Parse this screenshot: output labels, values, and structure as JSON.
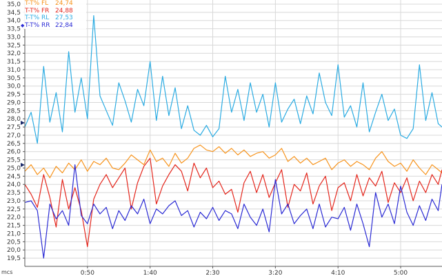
{
  "chart_data": {
    "type": "line",
    "title": "",
    "xlabel": "",
    "ylabel": "",
    "x_unit": "mcs",
    "y_ticks": [
      "19,5",
      "20,0",
      "20,5",
      "21,0",
      "21,5",
      "22,0",
      "22,5",
      "23,0",
      "23,5",
      "24,0",
      "24,5",
      "25,0",
      "25,5",
      "26,0",
      "26,5",
      "27,0",
      "27,5",
      "28,0",
      "28,5",
      "29,0",
      "29,5",
      "30,0",
      "30,5",
      "31,0",
      "31,5",
      "32,0",
      "32,5",
      "33,0",
      "33,5",
      "34,0",
      "34,5",
      "35,0"
    ],
    "ylim": [
      19.0,
      35.25
    ],
    "x_ticks": [
      {
        "label": "0:50",
        "seconds": 50
      },
      {
        "label": "1:40",
        "seconds": 100
      },
      {
        "label": "2:30",
        "seconds": 150
      },
      {
        "label": "3:20",
        "seconds": 200
      },
      {
        "label": "4:10",
        "seconds": 250
      },
      {
        "label": "5:00",
        "seconds": 300
      }
    ],
    "xlim": [
      0,
      333
    ],
    "grid": true,
    "legend_position": "top-left",
    "series": [
      {
        "name": "T-T% FL",
        "value_label": "24,74",
        "color": "#f7941d",
        "x": [
          0,
          5,
          10,
          15,
          20,
          25,
          30,
          35,
          40,
          45,
          50,
          55,
          60,
          65,
          70,
          75,
          80,
          85,
          90,
          95,
          100,
          105,
          110,
          115,
          120,
          125,
          130,
          135,
          140,
          145,
          150,
          155,
          160,
          165,
          170,
          175,
          180,
          185,
          190,
          195,
          200,
          205,
          210,
          215,
          220,
          225,
          230,
          235,
          240,
          245,
          250,
          255,
          260,
          265,
          270,
          275,
          280,
          285,
          290,
          295,
          300,
          305,
          310,
          315,
          320,
          325,
          330,
          333
        ],
        "y": [
          24.8,
          25.2,
          24.6,
          25.0,
          24.4,
          25.1,
          24.7,
          25.3,
          24.9,
          25.5,
          24.8,
          25.4,
          25.2,
          25.6,
          25.0,
          24.9,
          25.3,
          25.8,
          25.5,
          25.2,
          26.1,
          25.4,
          25.6,
          25.1,
          25.9,
          25.3,
          25.6,
          26.2,
          26.4,
          26.1,
          26.0,
          26.3,
          25.9,
          26.2,
          25.8,
          26.1,
          25.7,
          25.9,
          26.0,
          25.6,
          25.8,
          26.2,
          25.4,
          25.7,
          25.3,
          25.6,
          25.2,
          25.4,
          25.6,
          24.9,
          25.3,
          25.5,
          25.1,
          25.4,
          25.2,
          24.9,
          25.6,
          26.0,
          25.4,
          25.1,
          25.3,
          24.8,
          25.5,
          25.0,
          24.6,
          25.2,
          24.9,
          24.7
        ]
      },
      {
        "name": "T-T% FR",
        "value_label": "24,88",
        "color": "#e4251b",
        "x": [
          0,
          5,
          10,
          15,
          20,
          25,
          30,
          35,
          40,
          45,
          50,
          55,
          60,
          65,
          70,
          75,
          80,
          85,
          90,
          95,
          100,
          105,
          110,
          115,
          120,
          125,
          130,
          135,
          140,
          145,
          150,
          155,
          160,
          165,
          170,
          175,
          180,
          185,
          190,
          195,
          200,
          205,
          210,
          215,
          220,
          225,
          230,
          235,
          240,
          245,
          250,
          255,
          260,
          265,
          270,
          275,
          280,
          285,
          290,
          295,
          300,
          305,
          310,
          315,
          320,
          325,
          330,
          333
        ],
        "y": [
          24.0,
          23.4,
          22.6,
          24.6,
          23.2,
          21.4,
          24.3,
          22.5,
          23.8,
          22.4,
          20.2,
          23.1,
          24.0,
          24.6,
          23.8,
          24.4,
          25.0,
          22.5,
          24.1,
          25.1,
          25.6,
          22.8,
          23.9,
          24.6,
          25.2,
          24.8,
          23.6,
          25.3,
          24.4,
          25.0,
          23.8,
          24.2,
          23.4,
          23.7,
          22.3,
          24.1,
          24.8,
          23.5,
          24.6,
          23.2,
          24.1,
          24.9,
          22.6,
          24.0,
          23.6,
          24.7,
          22.8,
          23.9,
          24.5,
          22.4,
          23.8,
          24.1,
          23.0,
          24.6,
          23.3,
          24.4,
          23.9,
          24.8,
          22.9,
          24.1,
          23.5,
          24.4,
          23.0,
          24.2,
          23.5,
          24.6,
          24.0,
          24.9
        ]
      },
      {
        "name": "T-T% RL",
        "value_label": "27,53",
        "color": "#2aabe2",
        "x": [
          0,
          5,
          10,
          15,
          20,
          25,
          30,
          35,
          40,
          45,
          50,
          55,
          60,
          65,
          70,
          75,
          80,
          85,
          90,
          95,
          100,
          105,
          110,
          115,
          120,
          125,
          130,
          135,
          140,
          145,
          150,
          155,
          160,
          165,
          170,
          175,
          180,
          185,
          190,
          195,
          200,
          205,
          210,
          215,
          220,
          225,
          230,
          235,
          240,
          245,
          250,
          255,
          260,
          265,
          270,
          275,
          280,
          285,
          290,
          295,
          300,
          305,
          310,
          315,
          320,
          325,
          330,
          333
        ],
        "y": [
          27.5,
          28.4,
          26.5,
          31.2,
          27.8,
          29.6,
          27.2,
          32.1,
          28.4,
          30.5,
          28.0,
          34.3,
          29.4,
          28.5,
          27.6,
          30.2,
          29.1,
          27.8,
          29.8,
          28.8,
          31.5,
          27.9,
          30.6,
          28.2,
          29.9,
          27.4,
          28.8,
          27.3,
          27.0,
          27.6,
          26.9,
          27.4,
          30.6,
          28.4,
          29.8,
          27.9,
          30.2,
          28.4,
          29.5,
          27.5,
          30.2,
          27.8,
          28.6,
          29.2,
          27.7,
          29.4,
          28.3,
          30.8,
          29.0,
          28.2,
          31.3,
          28.1,
          28.8,
          27.5,
          30.2,
          27.2,
          28.4,
          29.5,
          27.9,
          28.6,
          27.0,
          26.8,
          27.4,
          31.3,
          27.9,
          29.6,
          27.7,
          27.5
        ]
      },
      {
        "name": "T-T% RR",
        "value_label": "22,84",
        "color": "#2a2ad4",
        "x": [
          0,
          5,
          10,
          15,
          20,
          25,
          30,
          35,
          40,
          45,
          50,
          55,
          60,
          65,
          70,
          75,
          80,
          85,
          90,
          95,
          100,
          105,
          110,
          115,
          120,
          125,
          130,
          135,
          140,
          145,
          150,
          155,
          160,
          165,
          170,
          175,
          180,
          185,
          190,
          195,
          200,
          205,
          210,
          215,
          220,
          225,
          230,
          235,
          240,
          245,
          250,
          255,
          260,
          265,
          270,
          275,
          280,
          285,
          290,
          295,
          300,
          305,
          310,
          315,
          320,
          325,
          330,
          333
        ],
        "y": [
          22.9,
          23.0,
          22.4,
          19.5,
          22.8,
          21.9,
          22.4,
          21.5,
          25.2,
          22.1,
          21.6,
          22.8,
          22.2,
          22.6,
          21.3,
          22.4,
          21.8,
          22.7,
          22.2,
          23.1,
          21.6,
          22.5,
          22.2,
          22.7,
          23.0,
          22.1,
          22.4,
          21.4,
          22.3,
          21.9,
          22.6,
          21.8,
          22.4,
          22.2,
          21.3,
          22.8,
          22.0,
          21.5,
          22.5,
          21.1,
          24.3,
          22.2,
          22.8,
          21.6,
          22.1,
          22.5,
          21.3,
          22.8,
          21.4,
          22.0,
          21.9,
          22.6,
          21.2,
          22.8,
          21.6,
          20.2,
          23.5,
          22.0,
          22.8,
          21.6,
          23.9,
          22.3,
          21.5,
          22.7,
          21.8,
          23.1,
          22.4,
          24.0
        ]
      }
    ]
  }
}
